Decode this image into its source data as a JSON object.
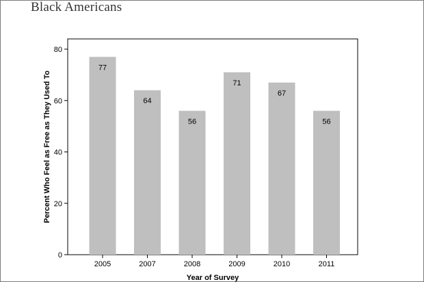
{
  "page": {
    "title": "Black Americans"
  },
  "chart_data": {
    "type": "bar",
    "categories": [
      "2005",
      "2007",
      "2008",
      "2009",
      "2010",
      "2011"
    ],
    "values": [
      77,
      64,
      56,
      71,
      67,
      56
    ],
    "data_labels": [
      "77",
      "64",
      "56",
      "71",
      "67",
      "56"
    ],
    "xlabel": "Year of Survey",
    "ylabel": "Percent Who Feel as Free as They Used To",
    "ylim": [
      0,
      80
    ],
    "yticks": [
      0,
      20,
      40,
      60,
      80
    ],
    "ytick_labels": [
      "0",
      "20",
      "40",
      "60",
      "80"
    ],
    "grid": false,
    "colors": {
      "bar": "#bfbfbf"
    }
  }
}
